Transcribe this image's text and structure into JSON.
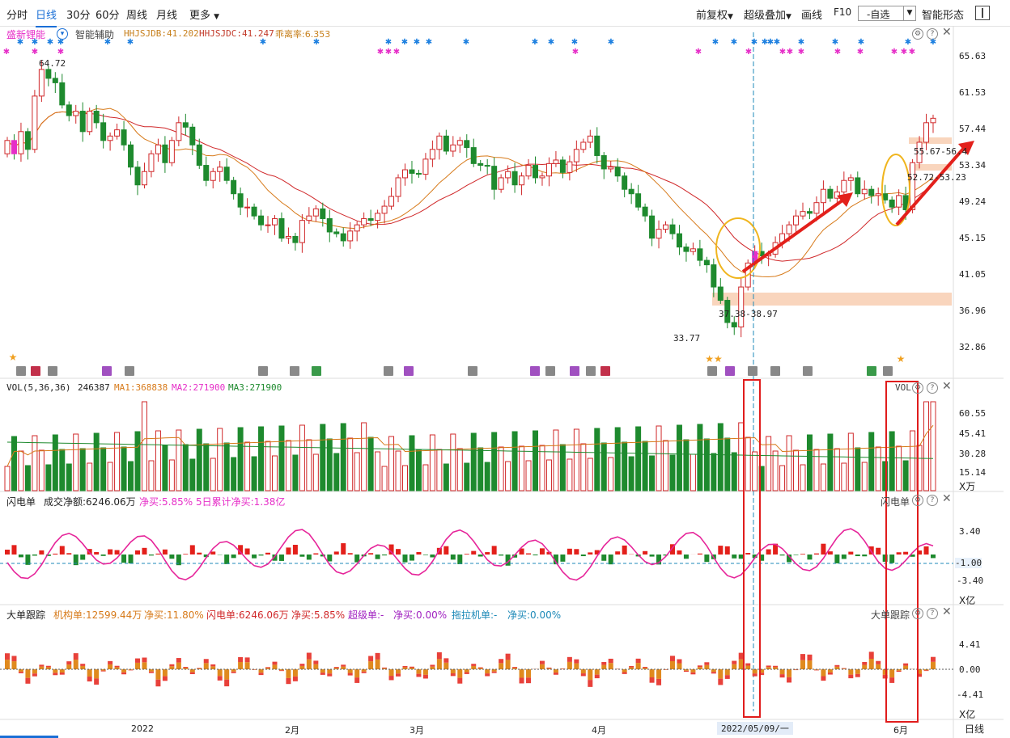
{
  "toolbar": {
    "tabs": [
      "分时",
      "日线",
      "30分",
      "60分",
      "周线",
      "月线"
    ],
    "active_tab": "日线",
    "more_label": "更多",
    "right": {
      "restore_label": "前复权",
      "overlay_label": "超级叠加",
      "draw_label": "画线",
      "f10_label": "F10",
      "watchlist_value": "-自选",
      "pattern_label": "智能形态"
    }
  },
  "stock_info": {
    "name": "盛新锂能",
    "assist_label": "智能辅助",
    "hhjsjdb": "HHJSJDB:41.202",
    "hhjsjdc": "HHJSJDC:41.247",
    "deviation": "乖离率:6.353"
  },
  "price_panel": {
    "y_labels": [
      "65.63",
      "61.53",
      "57.44",
      "53.34",
      "49.24",
      "45.15",
      "41.05",
      "36.96",
      "32.86"
    ],
    "high_label": "64.72",
    "low_label": "33.77",
    "support_zone_label": "37.38-38.97",
    "resistance_label_1": "55.67-56.4",
    "resistance_label_2": "52.72-53.23"
  },
  "volume_panel": {
    "title": "VOL(5,36,36)",
    "value": "246387",
    "ma1": "MA1:368838",
    "ma2": "MA2:271900",
    "ma3": "MA3:271900",
    "corner_label": "VOL",
    "y_labels": [
      "60.55",
      "45.41",
      "30.28",
      "15.14"
    ],
    "unit": "X万"
  },
  "flash_panel": {
    "title": "闪电单",
    "net_amount": "成交净额:6246.06万",
    "net_buy": "净买:5.85%",
    "five_day": "5日累计净买:1.38亿",
    "corner_label": "闪电单",
    "y_labels": [
      "3.40",
      "-1.00",
      "-3.40"
    ],
    "unit": "X亿"
  },
  "big_order_panel": {
    "title": "大单跟踪",
    "institution": "机构单:12599.44万",
    "inst_net": "净买:11.80%",
    "flash": "闪电单:6246.06万",
    "flash_net": "净买:5.85%",
    "super": "超级单:-",
    "super_net": "净买:0.00%",
    "tractor": "拖拉机单:-",
    "tractor_net": "净买:0.00%",
    "corner_label": "大单跟踪",
    "y_labels": [
      "4.41",
      "0.00",
      "-4.41"
    ],
    "unit": "X亿"
  },
  "x_axis": {
    "labels": [
      "2022",
      "2月",
      "3月",
      "4月",
      "6月"
    ],
    "cursor_date": "2022/05/09/一",
    "right_label": "日线"
  },
  "colors": {
    "up": "#d0282a",
    "down": "#1e8a2e",
    "ma_short": "#d77a1a",
    "ma_long": "#d0282a",
    "magenta": "#e62ec8",
    "annotation_circle": "#f0b51e",
    "annotation_box": "#e01c1c",
    "zone": "#f9d5bd",
    "star_blue": "#1c7fe0"
  }
}
